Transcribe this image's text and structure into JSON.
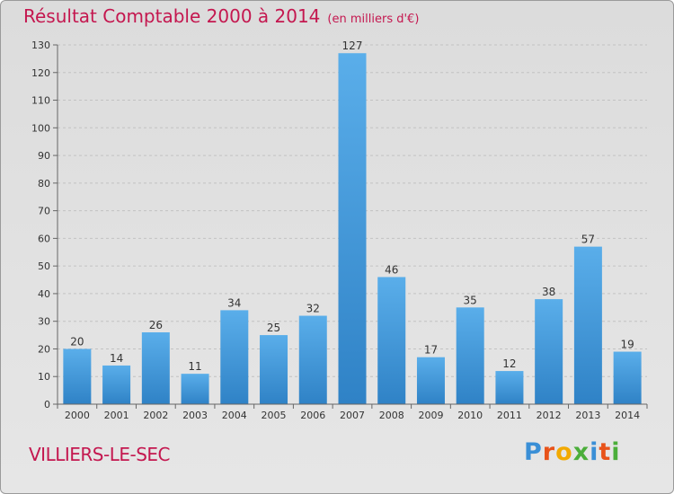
{
  "header": {
    "title": "Résultat Comptable 2000 à 2014",
    "unit": "(en milliers d'€)"
  },
  "footer": {
    "commune": "VILLIERS-LE-SEC",
    "logo": {
      "text": "Proxiti",
      "letters": [
        "P",
        "r",
        "o",
        "x",
        "i",
        "t",
        "i"
      ],
      "colors": [
        "#3a8fd6",
        "#e8531a",
        "#f2a900",
        "#4bae3a",
        "#3a8fd6",
        "#e8531a",
        "#4bae3a"
      ]
    }
  },
  "colors": {
    "title": "#c4174f",
    "bar_light": "#5aaeea",
    "bar_dark": "#2f82c6",
    "text": "#333333"
  },
  "chart_data": {
    "type": "bar",
    "title": "Résultat Comptable 2000 à 2014",
    "subtitle": "(en milliers d'€)",
    "xlabel": "",
    "ylabel": "",
    "categories": [
      "2000",
      "2001",
      "2002",
      "2003",
      "2004",
      "2005",
      "2006",
      "2007",
      "2008",
      "2009",
      "2010",
      "2011",
      "2012",
      "2013",
      "2014"
    ],
    "values": [
      20,
      14,
      26,
      11,
      34,
      25,
      32,
      127,
      46,
      17,
      35,
      12,
      38,
      57,
      19
    ],
    "ylim": [
      0,
      130
    ],
    "yticks": [
      0,
      10,
      20,
      30,
      40,
      50,
      60,
      70,
      80,
      90,
      100,
      110,
      120,
      130
    ],
    "grid": true,
    "data_labels": true
  }
}
